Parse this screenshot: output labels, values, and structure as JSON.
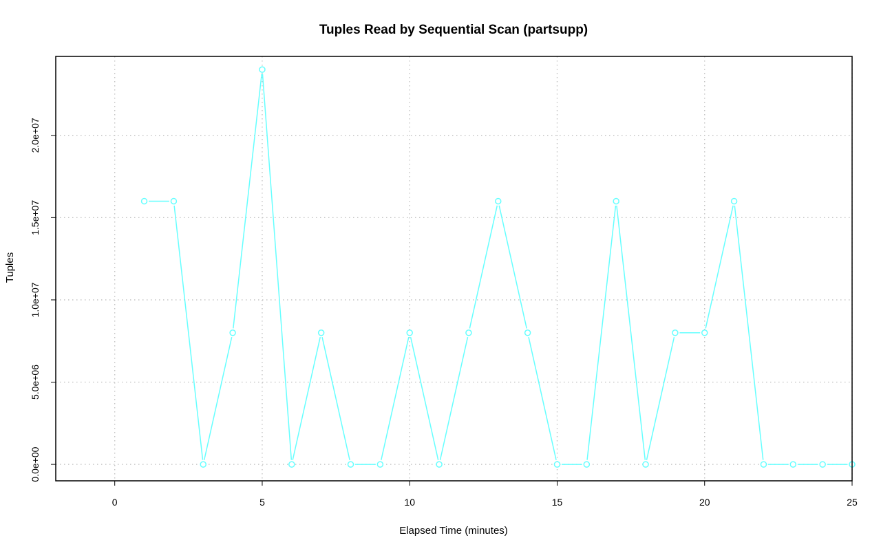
{
  "chart_data": {
    "type": "line",
    "title": "Tuples Read by Sequential Scan (partsupp)",
    "xlabel": "Elapsed Time (minutes)",
    "ylabel": "Tuples",
    "xlim": [
      -2,
      25
    ],
    "ylim": [
      -1000000,
      24800000
    ],
    "x_ticks": [
      0,
      5,
      10,
      15,
      20,
      25
    ],
    "x_tick_labels": [
      "0",
      "5",
      "10",
      "15",
      "20",
      "25"
    ],
    "y_ticks": [
      0,
      5000000,
      10000000,
      15000000,
      20000000
    ],
    "y_tick_labels": [
      "0.0e+00",
      "5.0e+06",
      "1.0e+07",
      "1.5e+07",
      "2.0e+07"
    ],
    "grid": true,
    "legend": "none",
    "series": [
      {
        "color": "#66ffff",
        "marker": "open-circle",
        "x": [
          1,
          2,
          3,
          4,
          5,
          6,
          7,
          8,
          9,
          10,
          11,
          12,
          13,
          14,
          15,
          16,
          17,
          18,
          19,
          20,
          21,
          22,
          23,
          24,
          25
        ],
        "values": [
          16000000,
          16000000,
          0,
          8000000,
          24000000,
          0,
          8000000,
          0,
          0,
          8000000,
          0,
          8000000,
          16000000,
          8000000,
          0,
          0,
          16000000,
          0,
          8000000,
          8000000,
          16000000,
          0,
          0,
          0,
          0
        ]
      }
    ]
  }
}
